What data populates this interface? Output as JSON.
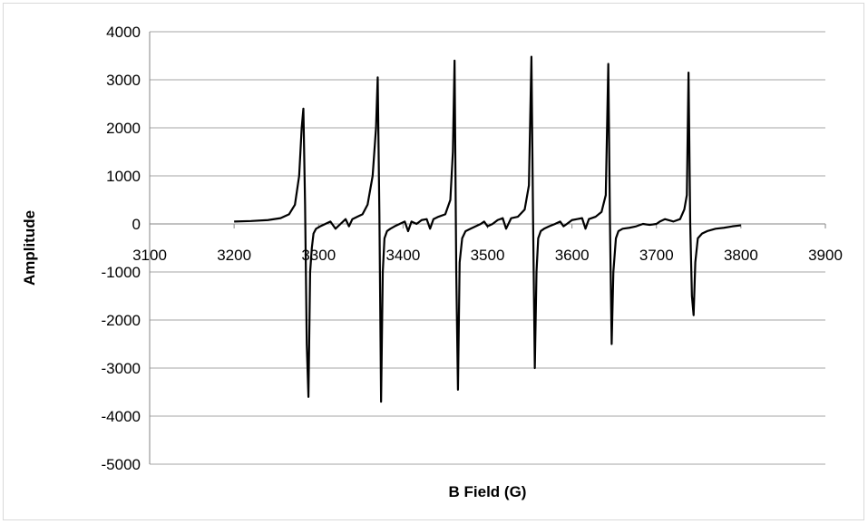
{
  "chart_data": {
    "type": "line",
    "title": "",
    "xlabel": "B Field (G)",
    "ylabel": "Amplitude",
    "xlim": [
      3100,
      3900
    ],
    "ylim": [
      -5000,
      4000
    ],
    "xticks": [
      3100,
      3200,
      3300,
      3400,
      3500,
      3600,
      3700,
      3800,
      3900
    ],
    "yticks": [
      -5000,
      -4000,
      -3000,
      -2000,
      -1000,
      0,
      1000,
      2000,
      3000,
      4000
    ],
    "grid": "horizontal",
    "line_color": "#000000",
    "series": [
      {
        "x": [
          3200,
          3220,
          3240,
          3255,
          3265,
          3272,
          3277,
          3280,
          3282,
          3284,
          3286,
          3288,
          3290,
          3292,
          3294,
          3297,
          3302,
          3308,
          3314,
          3320,
          3326,
          3332,
          3336,
          3340,
          3346,
          3352,
          3358,
          3364,
          3368,
          3370,
          3372,
          3374,
          3376,
          3378,
          3381,
          3385,
          3390,
          3396,
          3402,
          3406,
          3410,
          3416,
          3422,
          3428,
          3432,
          3436,
          3442,
          3450,
          3456,
          3459,
          3461,
          3463,
          3465,
          3467,
          3470,
          3474,
          3480,
          3486,
          3492,
          3496,
          3500,
          3506,
          3512,
          3518,
          3522,
          3528,
          3536,
          3544,
          3549,
          3552,
          3554,
          3556,
          3558,
          3560,
          3563,
          3567,
          3573,
          3580,
          3586,
          3590,
          3594,
          3600,
          3606,
          3612,
          3616,
          3620,
          3628,
          3635,
          3640,
          3643,
          3645,
          3647,
          3649,
          3652,
          3655,
          3660,
          3668,
          3676,
          3684,
          3692,
          3700,
          3704,
          3710,
          3720,
          3728,
          3733,
          3736,
          3738,
          3740,
          3742,
          3744,
          3746,
          3749,
          3754,
          3760,
          3770,
          3780,
          3790,
          3800
        ],
        "y": [
          50,
          60,
          80,
          120,
          200,
          400,
          1000,
          2000,
          2400,
          400,
          -2500,
          -3600,
          -1000,
          -500,
          -200,
          -100,
          -50,
          0,
          50,
          -100,
          0,
          100,
          -50,
          100,
          150,
          200,
          400,
          1000,
          2000,
          3050,
          200,
          -3700,
          -1000,
          -300,
          -150,
          -100,
          -50,
          0,
          50,
          -150,
          50,
          0,
          80,
          100,
          -100,
          100,
          150,
          200,
          500,
          1500,
          3400,
          -1000,
          -3450,
          -800,
          -300,
          -150,
          -100,
          -50,
          0,
          50,
          -50,
          0,
          80,
          120,
          -100,
          120,
          150,
          300,
          800,
          3480,
          0,
          -3000,
          -1000,
          -300,
          -150,
          -100,
          -50,
          0,
          50,
          -50,
          0,
          80,
          100,
          120,
          -100,
          100,
          150,
          250,
          600,
          3330,
          0,
          -2500,
          -1000,
          -300,
          -150,
          -100,
          -80,
          -50,
          0,
          -20,
          0,
          50,
          100,
          50,
          100,
          300,
          600,
          3150,
          0,
          -1500,
          -1900,
          -800,
          -300,
          -200,
          -150,
          -100,
          -80,
          -50,
          -30
        ]
      }
    ]
  }
}
